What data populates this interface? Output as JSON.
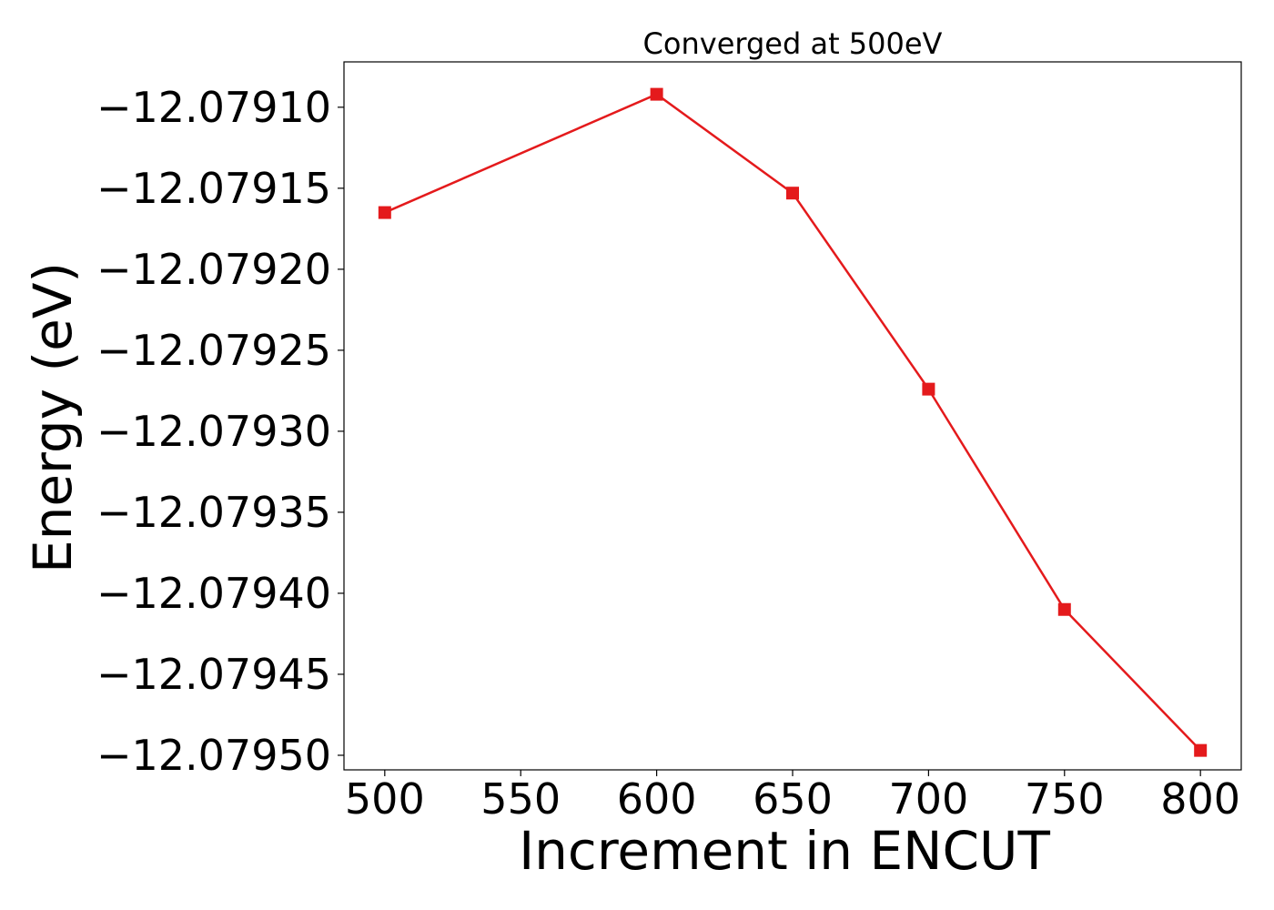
{
  "chart_data": {
    "type": "line",
    "title": "Converged at 500eV",
    "xlabel": "Increment in ENCUT",
    "ylabel": "Energy (eV)",
    "x": [
      500,
      600,
      650,
      700,
      750,
      800
    ],
    "series": [
      {
        "values": [
          -12.079165,
          -12.079092,
          -12.079153,
          -12.079274,
          -12.07941,
          -12.079497
        ],
        "color": "#e41a1c",
        "marker": "square"
      }
    ],
    "xticks": [
      500,
      550,
      600,
      650,
      700,
      750,
      800
    ],
    "xtick_labels": [
      "500",
      "550",
      "600",
      "650",
      "700",
      "750",
      "800"
    ],
    "yticks": [
      -12.0791,
      -12.07915,
      -12.0792,
      -12.07925,
      -12.0793,
      -12.07935,
      -12.0794,
      -12.07945,
      -12.0795
    ],
    "ytick_labels": [
      "−12.07910",
      "−12.07915",
      "−12.07920",
      "−12.07925",
      "−12.07930",
      "−12.07935",
      "−12.07940",
      "−12.07945",
      "−12.07950"
    ],
    "xlim": [
      485,
      815
    ],
    "ylim": [
      -12.079509,
      -12.079072
    ],
    "grid": false,
    "legend": false
  }
}
